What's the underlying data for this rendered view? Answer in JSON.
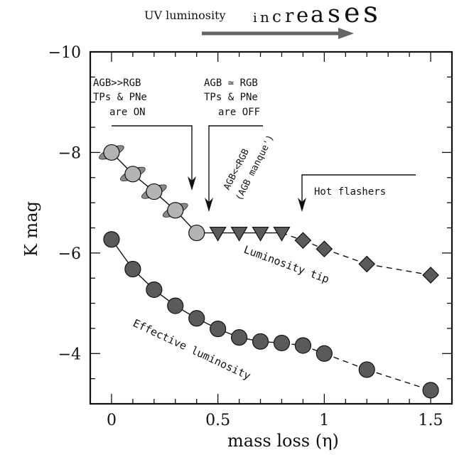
{
  "chart_data": {
    "type": "scatter",
    "xlabel_main": "mass loss",
    "xlabel_symbol": "(η)",
    "ylabel": "K mag",
    "xlim": [
      -0.1,
      1.6
    ],
    "ylim": [
      -3,
      -10
    ],
    "x_ticks": [
      0,
      0.5,
      1,
      1.5
    ],
    "x_tick_labels": [
      "0",
      "0.5",
      "1",
      "1.5"
    ],
    "y_ticks": [
      -10,
      -8,
      -6,
      -4
    ],
    "y_tick_labels": [
      "−10",
      "−8",
      "−6",
      "−4"
    ],
    "grid": false,
    "colors": {
      "light_circle": "#b4b4b4",
      "dark_marker": "#5a5a5a",
      "ellipse": "#8a8a8a",
      "uv_arrow": "#666666",
      "uv_text": "#777777"
    },
    "series": [
      {
        "name": "Luminosity tip",
        "segments": [
          {
            "marker": "light-circle-with-ellipse",
            "x": [
              0,
              0.1,
              0.2,
              0.3
            ],
            "y": [
              -8.0,
              -7.57,
              -7.22,
              -6.85
            ]
          },
          {
            "marker": "light-circle",
            "x": [
              0.4
            ],
            "y": [
              -6.4
            ]
          },
          {
            "marker": "triangle-down",
            "x": [
              0.5,
              0.6,
              0.7,
              0.8
            ],
            "y": [
              -6.4,
              -6.4,
              -6.4,
              -6.4
            ]
          },
          {
            "marker": "diamond",
            "x": [
              0.9,
              1.0,
              1.2,
              1.5
            ],
            "y": [
              -6.25,
              -6.08,
              -5.78,
              -5.56
            ]
          }
        ]
      },
      {
        "name": "Effective luminosity",
        "segments": [
          {
            "marker": "dark-circle",
            "x": [
              0,
              0.1,
              0.2,
              0.3,
              0.4,
              0.5,
              0.6,
              0.7,
              0.8,
              0.9,
              1.0,
              1.2,
              1.5
            ],
            "y": [
              -6.27,
              -5.68,
              -5.27,
              -4.95,
              -4.7,
              -4.49,
              -4.32,
              -4.24,
              -4.21,
              -4.16,
              -4.0,
              -3.68,
              -3.27
            ]
          }
        ]
      }
    ],
    "annotations": {
      "agb_gt_rgb": [
        "AGB>>RGB",
        "TPs & PNe",
        "are ON"
      ],
      "agb_eq_rgb": [
        "AGB ≃ RGB",
        "TPs & PNe",
        "are OFF"
      ],
      "agb_lt_rgb": [
        "AGB<<RGB",
        "(AGB manque')"
      ],
      "hot_flashers": "Hot flashers",
      "luminosity_tip": "Luminosity tip",
      "effective_luminosity": "Effective luminosity",
      "uv_label": "UV luminosity",
      "uv_letters": [
        "i",
        "n",
        "c",
        "r",
        "e",
        "a",
        "s",
        "e",
        "s"
      ]
    }
  }
}
